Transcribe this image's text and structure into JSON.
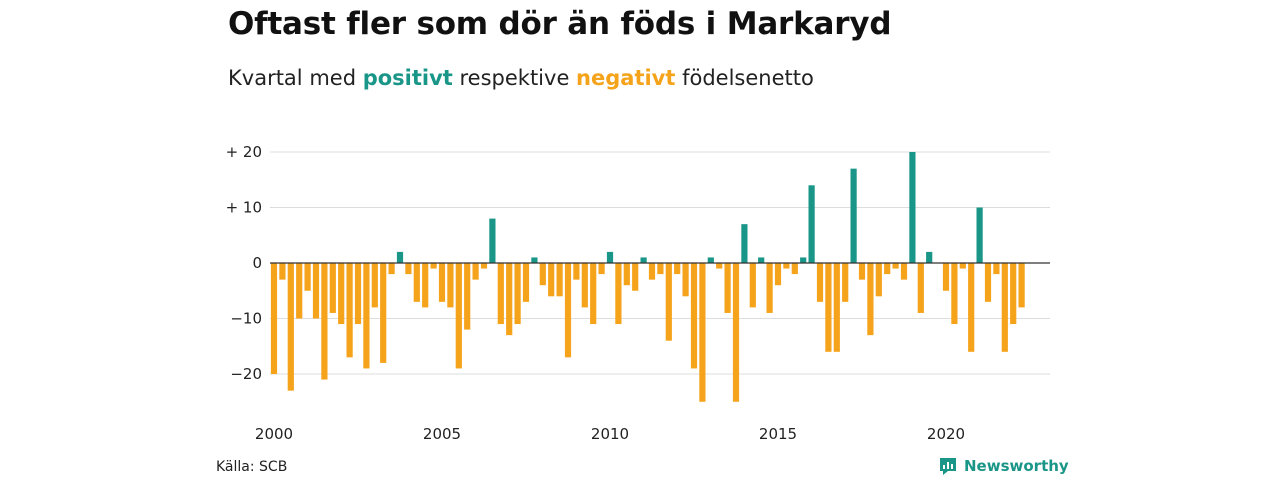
{
  "title": "Oftast fler som dör än föds i Markaryd",
  "subtitle": {
    "prefix": "Kvartal med ",
    "positive_word": "positivt",
    "middle": " respektive ",
    "negative_word": "negativt",
    "suffix": " födelsenetto"
  },
  "source": "Källa: SCB",
  "brand": {
    "name": "Newsworthy",
    "icon": "newsworthy-logo-icon"
  },
  "colors": {
    "positive": "#1a9688",
    "negative": "#f5a31a",
    "grid": "#dddddd",
    "zero_line": "#333333"
  },
  "chart_data": {
    "type": "bar",
    "title": "Oftast fler som dör än föds i Markaryd",
    "x_start": 2000,
    "x_step": 0.25,
    "xticks": [
      2000,
      2005,
      2010,
      2015,
      2020
    ],
    "xtick_labels": [
      "2000",
      "2005",
      "2010",
      "2015",
      "2020"
    ],
    "yticks": [
      20,
      10,
      0,
      -10,
      -20
    ],
    "ytick_labels": [
      "+ 20",
      "+ 10",
      "0",
      "−10",
      "−20"
    ],
    "ylim": [
      -27,
      22
    ],
    "grid": true,
    "values": [
      -20,
      -3,
      -23,
      -10,
      -5,
      -10,
      -21,
      -9,
      -11,
      -17,
      -11,
      -19,
      -8,
      -18,
      -2,
      2,
      -2,
      -7,
      -8,
      -1,
      -7,
      -8,
      -19,
      -12,
      -3,
      -1,
      8,
      -11,
      -13,
      -11,
      -7,
      1,
      -4,
      -6,
      -6,
      -17,
      -3,
      -8,
      -11,
      -2,
      2,
      -11,
      -4,
      -5,
      1,
      -3,
      -2,
      -14,
      -2,
      -6,
      -19,
      -25,
      1,
      -1,
      -9,
      -25,
      7,
      -8,
      1,
      -9,
      -4,
      -1,
      -2,
      1,
      14,
      -7,
      -16,
      -16,
      -7,
      17,
      -3,
      -13,
      -6,
      -2,
      -1,
      -3,
      20,
      -9,
      2,
      0,
      -5,
      -11,
      -1,
      -16,
      10,
      -7,
      -2,
      -16,
      -11,
      -8
    ]
  }
}
